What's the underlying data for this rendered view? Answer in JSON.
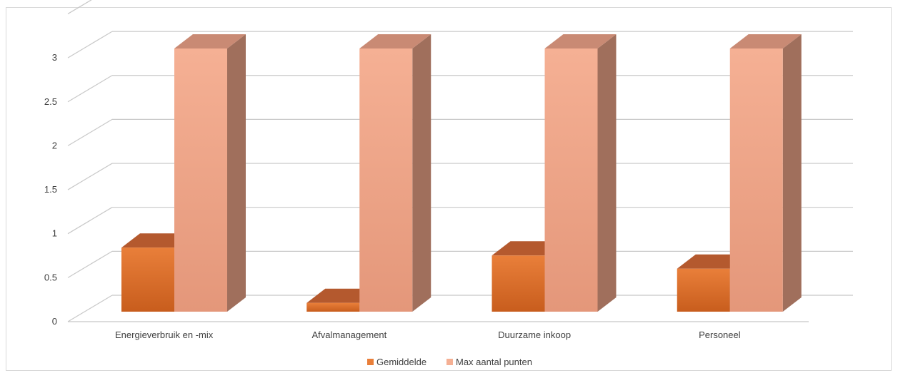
{
  "chart_data": {
    "type": "bar",
    "title": "",
    "xlabel": "",
    "ylabel": "",
    "ylim": [
      0,
      3
    ],
    "y_ticks": [
      "0",
      "0.5",
      "1",
      "1.5",
      "2",
      "2.5",
      "3"
    ],
    "categories": [
      "Energieverbruik en -mix",
      "Afvalmanagement",
      "Duurzame inkoop",
      "Personeel"
    ],
    "series": [
      {
        "name": "Gemiddelde",
        "values": [
          0.73,
          0.1,
          0.64,
          0.49
        ]
      },
      {
        "name": "Max aantal punten",
        "values": [
          3,
          3,
          3,
          3
        ]
      }
    ],
    "legend_position": "bottom",
    "grid": true,
    "colors": {
      "Gemiddelde": {
        "front_top": "#e97f3a",
        "front_bottom": "#c85d1d",
        "top": "#b4592e",
        "side": "#984e30"
      },
      "Max aantal punten": {
        "front_top": "#f5b094",
        "front_bottom": "#e4977a",
        "top": "#c98a74",
        "side": "#a06f5c"
      }
    }
  }
}
